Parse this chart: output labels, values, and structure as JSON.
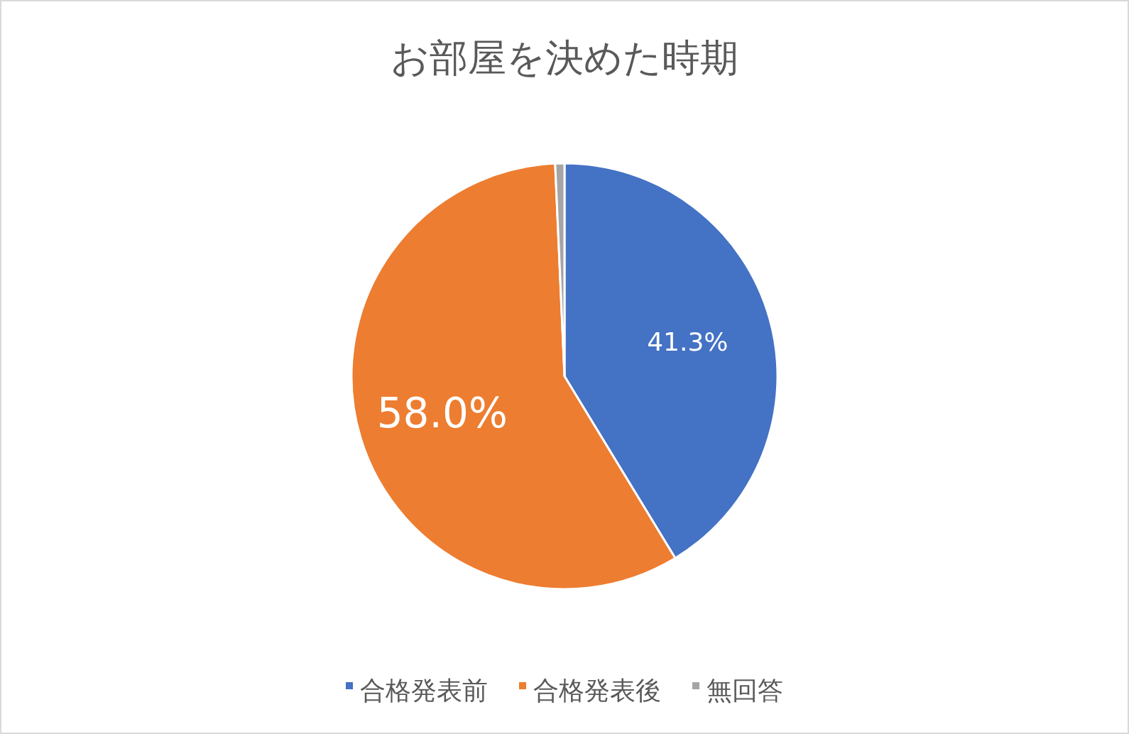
{
  "chart_data": {
    "type": "pie",
    "title": "お部屋を決めた時期",
    "categories": [
      "合格発表前",
      "合格発表後",
      "無回答"
    ],
    "values": [
      41.3,
      58.0,
      0.7
    ],
    "colors": [
      "#4472c4",
      "#ed7d31",
      "#a5a5a5"
    ],
    "value_labels": [
      "41.3%",
      "58.0%",
      null
    ],
    "legend": "bottom"
  }
}
